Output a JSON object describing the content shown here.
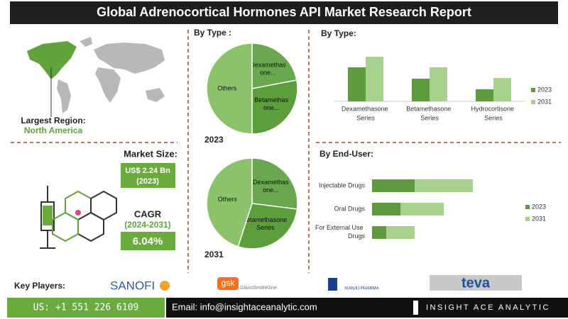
{
  "header": {
    "title": "Global Adrenocortical Hormones API Market Research Report"
  },
  "region": {
    "label": "Largest Region:",
    "value": "North America"
  },
  "market_size": {
    "label": "Market Size:",
    "value": "US$ 2.24 Bn",
    "year": "(2023)"
  },
  "cagr": {
    "label": "CAGR",
    "period": "(2024-2031)",
    "value": "6.04%"
  },
  "chart_data": [
    {
      "type": "pie",
      "title": "By Type :",
      "subtitle": "2023",
      "categories": [
        "Dexamethasone...",
        "Betamethasone...",
        "Others"
      ],
      "values": [
        22,
        28,
        50
      ],
      "colors": [
        "#6aa84f",
        "#5c9e3c",
        "#8cc36a"
      ]
    },
    {
      "type": "pie",
      "subtitle": "2031",
      "categories": [
        "Dexamethasone...",
        "Betamethasone Series",
        "Others"
      ],
      "values": [
        27,
        28,
        45
      ],
      "colors": [
        "#6aa84f",
        "#5c9e3c",
        "#8cc36a"
      ]
    },
    {
      "type": "bar",
      "title": "By  Type:",
      "categories": [
        "Dexamethasone Series",
        "Betamethasone Series",
        "Hydrocortisone Series"
      ],
      "series": [
        {
          "name": "2023",
          "color": "#5e9b3e",
          "values": [
            48,
            32,
            17
          ]
        },
        {
          "name": "2031",
          "color": "#a9d18e",
          "values": [
            63,
            48,
            33
          ]
        }
      ],
      "legend": "right"
    },
    {
      "type": "hbar",
      "stacked": true,
      "title": "By End-User:",
      "categories": [
        "Injectable Drugs",
        "Oral Drugs",
        "For External Use Drugs"
      ],
      "series": [
        {
          "name": "2023",
          "color": "#5e9b3e",
          "values": [
            60,
            40,
            20
          ]
        },
        {
          "name": "2031",
          "color": "#a9d18e",
          "values": [
            82,
            61,
            40
          ]
        }
      ],
      "legend": "right"
    }
  ],
  "key_players": {
    "label": "Key Players:",
    "companies": [
      "SANOFI",
      "gsk",
      "GlaxoSmithKline",
      "XIANJU PHARMA",
      "teva"
    ]
  },
  "footer": {
    "phone": "US: +1 551 226 6109",
    "email": "Email: info@insightaceanalytic.com",
    "brand": "INSIGHT ACE ANALYTIC"
  }
}
